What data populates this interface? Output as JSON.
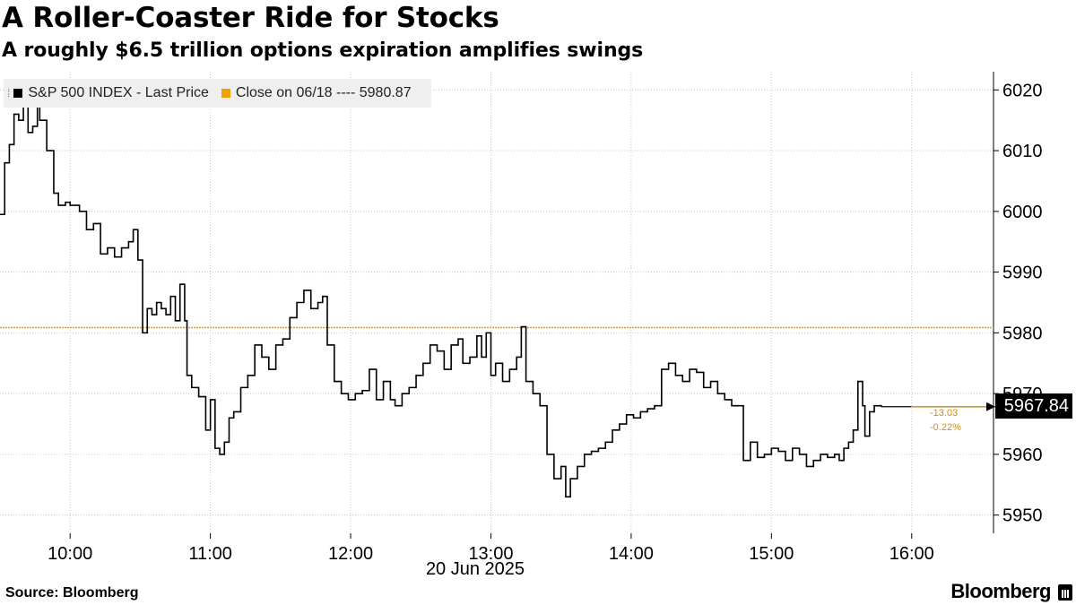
{
  "title": "A Roller-Coaster Ride for Stocks",
  "subtitle": "A roughly $6.5 trillion options expiration amplifies swings",
  "legend": {
    "series_label": "S&P 500 INDEX - Last Price",
    "reference_label": "Close on 06/18 ---- 5980.87"
  },
  "last_price_label": "5967.84",
  "change_abs": "-13.03",
  "change_pct": "-0.22%",
  "date_label": "20 Jun 2025",
  "source": "Source: Bloomberg",
  "brand": "Bloomberg",
  "colors": {
    "line": "#000000",
    "reference": "#f0a000",
    "grid": "#c8c8c8",
    "legend_bg": "#efefef"
  },
  "chart_data": {
    "type": "line",
    "title": "A Roller-Coaster Ride for Stocks",
    "subtitle": "A roughly $6.5 trillion options expiration amplifies swings",
    "xlabel": "20 Jun 2025",
    "ylabel": "",
    "xlim": [
      "09:30",
      "16:35"
    ],
    "ylim": [
      5947,
      6023
    ],
    "x_ticks": [
      "10:00",
      "11:00",
      "12:00",
      "13:00",
      "14:00",
      "15:00",
      "16:00"
    ],
    "y_ticks": [
      5950,
      5960,
      5970,
      5980,
      5990,
      6000,
      6010,
      6020
    ],
    "grid": true,
    "legend_position": "top-left",
    "reference_line": {
      "label": "Close on 06/18",
      "value": 5980.87
    },
    "last_value": 5967.84,
    "change": -13.03,
    "change_pct": -0.22,
    "series": [
      {
        "name": "S&P 500 INDEX - Last Price",
        "points": [
          [
            "09:30",
            5999.5
          ],
          [
            "09:32",
            6008.0
          ],
          [
            "09:34",
            6011.0
          ],
          [
            "09:36",
            6016.0
          ],
          [
            "09:38",
            6015.0
          ],
          [
            "09:40",
            6017.5
          ],
          [
            "09:42",
            6013.0
          ],
          [
            "09:44",
            6014.0
          ],
          [
            "09:46",
            6018.0
          ],
          [
            "09:47",
            6015.0
          ],
          [
            "09:50",
            6010.0
          ],
          [
            "09:53",
            6003.0
          ],
          [
            "09:55",
            6001.0
          ],
          [
            "09:58",
            6001.5
          ],
          [
            "10:00",
            6001.0
          ],
          [
            "10:04",
            6000.0
          ],
          [
            "10:07",
            5997.0
          ],
          [
            "10:10",
            5998.0
          ],
          [
            "10:13",
            5993.0
          ],
          [
            "10:16",
            5994.0
          ],
          [
            "10:19",
            5992.5
          ],
          [
            "10:22",
            5994.0
          ],
          [
            "10:25",
            5995.0
          ],
          [
            "10:27",
            5997.0
          ],
          [
            "10:29",
            5992.0
          ],
          [
            "10:31",
            5980.0
          ],
          [
            "10:33",
            5984.0
          ],
          [
            "10:35",
            5983.0
          ],
          [
            "10:37",
            5985.0
          ],
          [
            "10:39",
            5984.0
          ],
          [
            "10:41",
            5983.0
          ],
          [
            "10:43",
            5986.0
          ],
          [
            "10:45",
            5982.0
          ],
          [
            "10:47",
            5988.0
          ],
          [
            "10:49",
            5982.0
          ],
          [
            "10:50",
            5973.0
          ],
          [
            "10:52",
            5971.0
          ],
          [
            "10:55",
            5969.5
          ],
          [
            "10:58",
            5964.0
          ],
          [
            "11:00",
            5969.0
          ],
          [
            "11:02",
            5961.0
          ],
          [
            "11:04",
            5960.0
          ],
          [
            "11:06",
            5962.0
          ],
          [
            "11:08",
            5966.0
          ],
          [
            "11:10",
            5967.0
          ],
          [
            "11:13",
            5971.0
          ],
          [
            "11:16",
            5973.0
          ],
          [
            "11:19",
            5978.0
          ],
          [
            "11:22",
            5976.0
          ],
          [
            "11:25",
            5974.0
          ],
          [
            "11:28",
            5978.0
          ],
          [
            "11:31",
            5979.0
          ],
          [
            "11:34",
            5982.5
          ],
          [
            "11:37",
            5985.0
          ],
          [
            "11:40",
            5987.0
          ],
          [
            "11:43",
            5984.0
          ],
          [
            "11:46",
            5985.0
          ],
          [
            "11:48",
            5986.0
          ],
          [
            "11:50",
            5978.0
          ],
          [
            "11:53",
            5972.0
          ],
          [
            "11:56",
            5970.0
          ],
          [
            "11:59",
            5969.0
          ],
          [
            "12:02",
            5970.0
          ],
          [
            "12:05",
            5970.5
          ],
          [
            "12:08",
            5974.0
          ],
          [
            "12:11",
            5969.0
          ],
          [
            "12:14",
            5972.0
          ],
          [
            "12:17",
            5969.0
          ],
          [
            "12:19",
            5968.0
          ],
          [
            "12:22",
            5970.0
          ],
          [
            "12:25",
            5971.0
          ],
          [
            "12:28",
            5973.0
          ],
          [
            "12:31",
            5975.0
          ],
          [
            "12:34",
            5978.0
          ],
          [
            "12:37",
            5977.0
          ],
          [
            "12:40",
            5974.0
          ],
          [
            "12:43",
            5978.0
          ],
          [
            "12:46",
            5979.0
          ],
          [
            "12:48",
            5975.0
          ],
          [
            "12:51",
            5976.0
          ],
          [
            "12:54",
            5979.5
          ],
          [
            "12:56",
            5976.0
          ],
          [
            "12:58",
            5980.0
          ],
          [
            "13:00",
            5973.0
          ],
          [
            "13:02",
            5975.0
          ],
          [
            "13:05",
            5972.0
          ],
          [
            "13:08",
            5974.0
          ],
          [
            "13:11",
            5976.0
          ],
          [
            "13:13",
            5981.0
          ],
          [
            "13:15",
            5972.0
          ],
          [
            "13:18",
            5970.0
          ],
          [
            "13:21",
            5968.0
          ],
          [
            "13:24",
            5960.0
          ],
          [
            "13:27",
            5956.0
          ],
          [
            "13:30",
            5958.0
          ],
          [
            "13:32",
            5953.0
          ],
          [
            "13:34",
            5956.0
          ],
          [
            "13:37",
            5958.0
          ],
          [
            "13:40",
            5960.0
          ],
          [
            "13:43",
            5960.5
          ],
          [
            "13:46",
            5961.0
          ],
          [
            "13:49",
            5962.0
          ],
          [
            "13:52",
            5964.0
          ],
          [
            "13:55",
            5965.0
          ],
          [
            "13:58",
            5966.5
          ],
          [
            "14:01",
            5966.0
          ],
          [
            "14:04",
            5967.0
          ],
          [
            "14:07",
            5967.5
          ],
          [
            "14:10",
            5968.0
          ],
          [
            "14:13",
            5974.0
          ],
          [
            "14:16",
            5975.0
          ],
          [
            "14:19",
            5973.0
          ],
          [
            "14:22",
            5972.0
          ],
          [
            "14:25",
            5974.0
          ],
          [
            "14:28",
            5973.5
          ],
          [
            "14:31",
            5971.0
          ],
          [
            "14:34",
            5972.0
          ],
          [
            "14:37",
            5970.0
          ],
          [
            "14:40",
            5969.0
          ],
          [
            "14:43",
            5968.0
          ],
          [
            "14:46",
            5968.0
          ],
          [
            "14:48",
            5959.0
          ],
          [
            "14:51",
            5962.0
          ],
          [
            "14:54",
            5959.5
          ],
          [
            "14:57",
            5960.0
          ],
          [
            "15:00",
            5961.0
          ],
          [
            "15:03",
            5960.5
          ],
          [
            "15:06",
            5959.0
          ],
          [
            "15:09",
            5961.0
          ],
          [
            "15:12",
            5960.0
          ],
          [
            "15:15",
            5958.0
          ],
          [
            "15:18",
            5959.0
          ],
          [
            "15:21",
            5960.0
          ],
          [
            "15:24",
            5959.5
          ],
          [
            "15:27",
            5960.0
          ],
          [
            "15:29",
            5959.0
          ],
          [
            "15:31",
            5961.0
          ],
          [
            "15:33",
            5962.0
          ],
          [
            "15:35",
            5964.0
          ],
          [
            "15:37",
            5972.0
          ],
          [
            "15:39",
            5968.0
          ],
          [
            "15:40",
            5963.0
          ],
          [
            "15:42",
            5967.0
          ],
          [
            "15:44",
            5968.0
          ],
          [
            "15:47",
            5967.84
          ]
        ]
      }
    ]
  }
}
